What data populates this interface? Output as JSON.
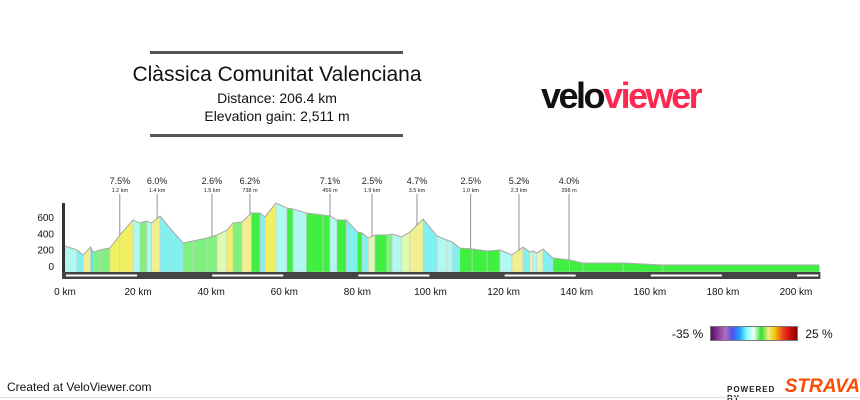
{
  "header": {
    "title": "Clàssica Comunitat Valenciana",
    "distance": "Distance: 206.4 km",
    "elevation_gain": "Elevation gain: 2,511 m"
  },
  "logo": {
    "part1": "velo",
    "part2": "viewer",
    "colors": [
      "#111111",
      "#fc2a50"
    ]
  },
  "legend": {
    "min_label": "-35 %",
    "max_label": "25 %"
  },
  "footer": {
    "created": "Created at VeloViewer.com",
    "powered_by": "POWERED BY",
    "strava": "STRAVA",
    "strava_color": "#fc4c02"
  },
  "chart_data": {
    "type": "area",
    "xlabel": "",
    "ylabel": "",
    "xlim": [
      0,
      206.4
    ],
    "ylim": [
      -70,
      800
    ],
    "x_ticks": [
      0,
      20,
      40,
      60,
      80,
      100,
      120,
      140,
      160,
      180,
      200
    ],
    "x_tick_labels": [
      "0 km",
      "20 km",
      "40 km",
      "60 km",
      "80 km",
      "100 km",
      "120 km",
      "140 km",
      "160 km",
      "180 km",
      "200 km"
    ],
    "y_ticks": [
      0,
      200,
      400,
      600
    ],
    "y_tick_labels": [
      "0",
      "200",
      "400",
      "600"
    ],
    "profile": [
      [
        0,
        245
      ],
      [
        3.3,
        196
      ],
      [
        5,
        135
      ],
      [
        7,
        232
      ],
      [
        7.7,
        170
      ],
      [
        9.6,
        196
      ],
      [
        12.3,
        220
      ],
      [
        15,
        380
      ],
      [
        18.6,
        563
      ],
      [
        20.5,
        526
      ],
      [
        22.4,
        550
      ],
      [
        23.7,
        526
      ],
      [
        26,
        612
      ],
      [
        28.7,
        465
      ],
      [
        32.3,
        282
      ],
      [
        35,
        306
      ],
      [
        38.9,
        343
      ],
      [
        41.6,
        380
      ],
      [
        44.3,
        440
      ],
      [
        46,
        526
      ],
      [
        48.4,
        539
      ],
      [
        51,
        649
      ],
      [
        53.4,
        649
      ],
      [
        54.7,
        600
      ],
      [
        57.7,
        771
      ],
      [
        60.7,
        710
      ],
      [
        62.4,
        698
      ],
      [
        66,
        649
      ],
      [
        70.6,
        624
      ],
      [
        72.5,
        612
      ],
      [
        74.4,
        563
      ],
      [
        77,
        563
      ],
      [
        80,
        416
      ],
      [
        81.3,
        404
      ],
      [
        83,
        343
      ],
      [
        84.8,
        380
      ],
      [
        88.1,
        380
      ],
      [
        89.5,
        392
      ],
      [
        92,
        355
      ],
      [
        94.4,
        416
      ],
      [
        98,
        575
      ],
      [
        101.8,
        367
      ],
      [
        104.5,
        318
      ],
      [
        106,
        294
      ],
      [
        108,
        220
      ],
      [
        111.4,
        208
      ],
      [
        115.5,
        184
      ],
      [
        119,
        196
      ],
      [
        122.3,
        135
      ],
      [
        125.3,
        232
      ],
      [
        127.2,
        171
      ],
      [
        128,
        184
      ],
      [
        129.1,
        159
      ],
      [
        130.8,
        208
      ],
      [
        133.5,
        98
      ],
      [
        138,
        73
      ],
      [
        141.7,
        37
      ],
      [
        152.7,
        37
      ],
      [
        163.6,
        12
      ],
      [
        206.4,
        12
      ]
    ],
    "climbs": [
      {
        "km": 15,
        "gradient": "7.5%",
        "length": "1.2 km"
      },
      {
        "km": 25.2,
        "gradient": "6.0%",
        "length": "1.4 km"
      },
      {
        "km": 40.2,
        "gradient": "2.6%",
        "length": "1.5 km"
      },
      {
        "km": 50.6,
        "gradient": "6.2%",
        "length": "738 m"
      },
      {
        "km": 72.5,
        "gradient": "7.1%",
        "length": "456 m"
      },
      {
        "km": 84,
        "gradient": "2.5%",
        "length": "1.9 km"
      },
      {
        "km": 96.3,
        "gradient": "4.7%",
        "length": "3.5 km"
      },
      {
        "km": 111,
        "gradient": "2.5%",
        "length": "1.0 km"
      },
      {
        "km": 124.2,
        "gradient": "5.2%",
        "length": "2.3 km"
      },
      {
        "km": 137.9,
        "gradient": "4.0%",
        "length": "398 m"
      }
    ],
    "gradient_scale": {
      "min": -35,
      "max": 25
    },
    "grid": false
  }
}
